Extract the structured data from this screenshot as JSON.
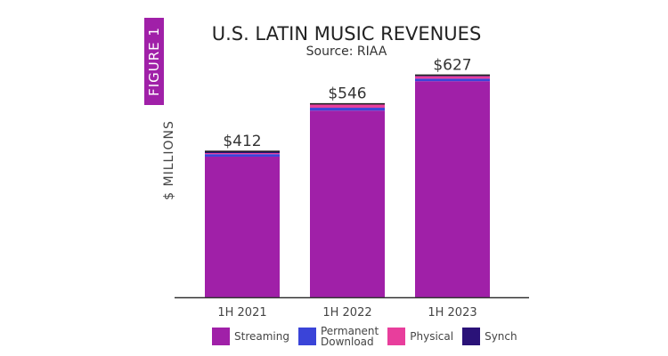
{
  "figure_label": "FIGURE 1",
  "chart_data": {
    "type": "bar",
    "stacked": true,
    "title": "U.S. LATIN MUSIC REVENUES",
    "subtitle": "Source: RIAA",
    "ylabel": "$ MILLIONS",
    "xlabel": "",
    "ylim": [
      0,
      650
    ],
    "grid": false,
    "legend_placement": "bottom",
    "categories": [
      "1H 2021",
      "1H 2022",
      "1H 2023"
    ],
    "totals_labels": [
      "$412",
      "$546",
      "$627"
    ],
    "series": [
      {
        "name": "Streaming",
        "color": "#a020a8",
        "values": [
          397,
          527,
          610
        ]
      },
      {
        "name": "Permanent Download",
        "color": "#3a44d8",
        "values": [
          7,
          8,
          7
        ]
      },
      {
        "name": "Physical",
        "color": "#e83e9c",
        "values": [
          3,
          9,
          7
        ]
      },
      {
        "name": "Synch",
        "color": "#2a1278",
        "values": [
          5,
          2,
          3
        ]
      }
    ]
  },
  "legend": [
    {
      "line1": "Streaming",
      "line2": ""
    },
    {
      "line1": "Permanent",
      "line2": "Download"
    },
    {
      "line1": "Physical",
      "line2": ""
    },
    {
      "line1": "Synch",
      "line2": ""
    }
  ]
}
